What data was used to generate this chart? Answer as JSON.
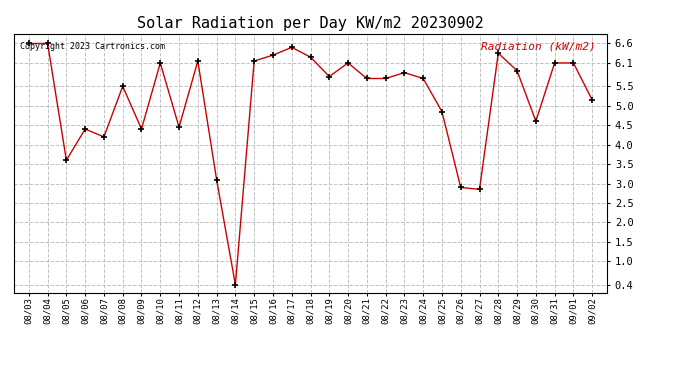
{
  "title": "Solar Radiation per Day KW/m2 20230902",
  "copyright_text": "Copyright 2023 Cartronics.com",
  "legend_label": "Radiation (kW/m2)",
  "dates": [
    "08/03",
    "08/04",
    "08/05",
    "08/06",
    "08/07",
    "08/08",
    "08/09",
    "08/10",
    "08/11",
    "08/12",
    "08/13",
    "08/14",
    "08/15",
    "08/16",
    "08/17",
    "08/18",
    "08/19",
    "08/20",
    "08/21",
    "08/22",
    "08/23",
    "08/24",
    "08/25",
    "08/26",
    "08/27",
    "08/28",
    "08/29",
    "08/30",
    "08/31",
    "09/01",
    "09/02"
  ],
  "values": [
    6.6,
    6.6,
    3.6,
    4.4,
    4.2,
    5.5,
    4.4,
    6.1,
    4.45,
    6.15,
    3.1,
    0.4,
    6.15,
    6.3,
    6.5,
    6.25,
    5.75,
    6.1,
    5.7,
    5.7,
    5.85,
    5.7,
    4.85,
    2.9,
    2.85,
    6.35,
    5.9,
    4.6,
    6.1,
    6.1,
    5.15
  ],
  "line_color": "#cc0000",
  "marker_color": "#000000",
  "grid_color": "#bbbbbb",
  "background_color": "#ffffff",
  "title_color": "#000000",
  "legend_color": "#cc0000",
  "copyright_color": "#000000",
  "ylim_min": 0.2,
  "ylim_max": 6.85,
  "yticks": [
    0.4,
    1.0,
    1.5,
    2.0,
    2.5,
    3.0,
    3.5,
    4.0,
    4.5,
    5.0,
    5.5,
    6.1,
    6.6
  ],
  "fig_width": 6.9,
  "fig_height": 3.75,
  "dpi": 100
}
